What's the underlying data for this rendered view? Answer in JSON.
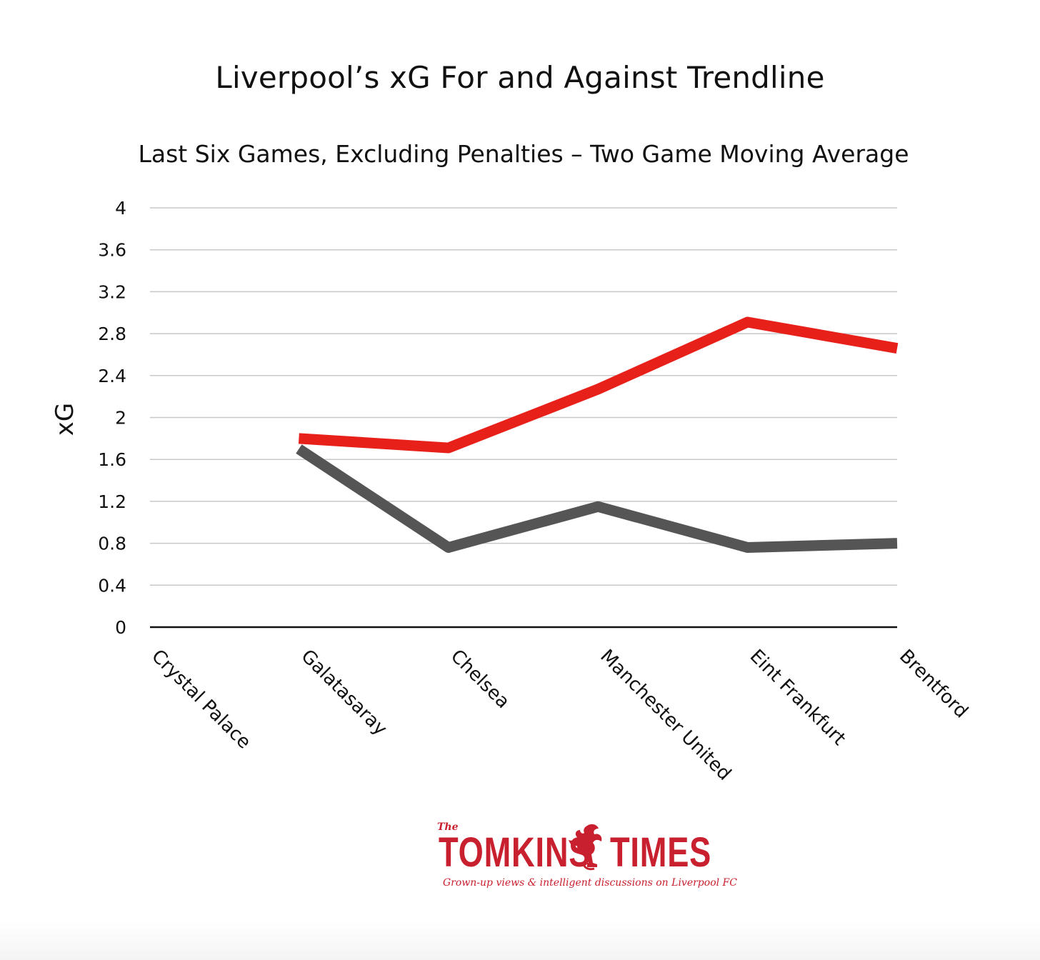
{
  "colors": {
    "for": "#e8201a",
    "against": "#555555",
    "grid": "#c8c8c8",
    "axis": "#111111",
    "brand": "#c8202f"
  },
  "chart_data": {
    "type": "line",
    "title": "Liverpool’s xG For and Against Trendline",
    "subtitle": "Last Six Games, Excluding Penalties – Two Game Moving Average",
    "ylabel": "xG",
    "xlabel": "",
    "ylim": [
      0,
      4
    ],
    "yticks": [
      "0",
      "0.4",
      "0.8",
      "1.2",
      "1.6",
      "2",
      "2.4",
      "2.8",
      "3.2",
      "3.6",
      "4"
    ],
    "grid": true,
    "legend": "none",
    "categories": [
      "Crystal Palace",
      "Galatasaray",
      "Chelsea",
      "Manchester United",
      "Eint Frankfurt",
      "Brentford"
    ],
    "series": [
      {
        "color": "#e8201a",
        "values": [
          null,
          1.8,
          1.71,
          2.27,
          2.91,
          2.66
        ]
      },
      {
        "color": "#555555",
        "values": [
          null,
          1.7,
          0.76,
          1.15,
          0.76,
          0.8
        ]
      }
    ]
  },
  "logo": {
    "the": "The",
    "word1": "TOMKINS",
    "word2": "TIMES",
    "tagline": "Grown-up views & intelligent discussions on Liverpool FC"
  }
}
